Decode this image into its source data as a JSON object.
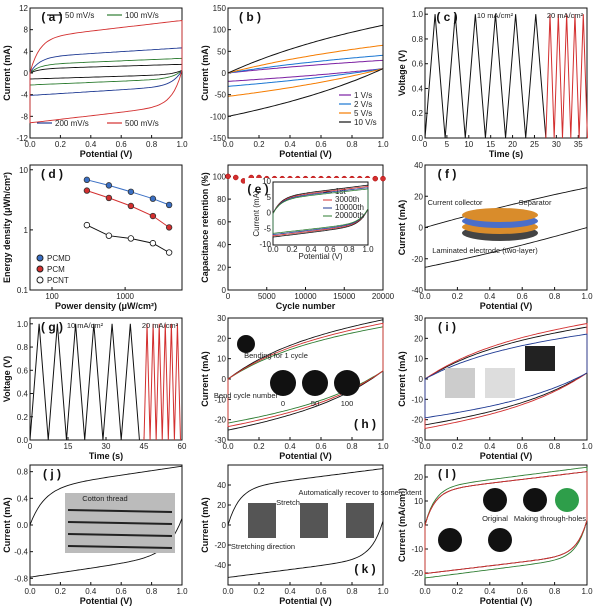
{
  "chart_data": [
    {
      "id": "a",
      "type": "line",
      "panel_label": "( a )",
      "xlabel": "Potential (V)",
      "ylabel": "Current (mA)",
      "xlim": [
        0,
        1
      ],
      "ylim": [
        -12,
        12
      ],
      "xticks": [
        0,
        0.2,
        0.4,
        0.6,
        0.8,
        1.0
      ],
      "xtick_labels": [
        "0.0",
        "0.2",
        "0.4",
        "0.6",
        "0.8",
        "1.0"
      ],
      "yticks": [
        -12,
        -8,
        -4,
        0,
        4,
        8,
        12
      ],
      "ytick_labels": [
        "-12",
        "-8",
        "-4",
        "0",
        "4",
        "8",
        "12"
      ],
      "series": [
        {
          "name": "50 mV/s",
          "color": "#111111",
          "amp": 1.2
        },
        {
          "name": "100 mV/s",
          "color": "#2e7d32",
          "amp": 2.4
        },
        {
          "name": "200 mV/s",
          "color": "#1f3a93",
          "amp": 4.5
        },
        {
          "name": "500 mV/s",
          "color": "#d32f2f",
          "amp": 10
        }
      ]
    },
    {
      "id": "b",
      "type": "line",
      "panel_label": "( b )",
      "xlabel": "Potential (V)",
      "ylabel": "Current (mA)",
      "xlim": [
        0,
        1
      ],
      "ylim": [
        -150,
        150
      ],
      "xticks": [
        0,
        0.2,
        0.4,
        0.6,
        0.8,
        1.0
      ],
      "xtick_labels": [
        "0.0",
        "0.2",
        "0.4",
        "0.6",
        "0.8",
        "1.0"
      ],
      "yticks": [
        -150,
        -100,
        -50,
        0,
        50,
        100,
        150
      ],
      "ytick_labels": [
        "-150",
        "-100",
        "-50",
        "0",
        "50",
        "100",
        "150"
      ],
      "series": [
        {
          "name": "1 V/s",
          "color": "#7b1fa2",
          "amp": 25
        },
        {
          "name": "2 V/s",
          "color": "#1976d2",
          "amp": 40
        },
        {
          "name": "5 V/s",
          "color": "#f57c00",
          "amp": 70
        },
        {
          "name": "10 V/s",
          "color": "#111111",
          "amp": 130
        }
      ]
    },
    {
      "id": "c",
      "type": "line",
      "panel_label": "( c )",
      "xlabel": "Time (s)",
      "ylabel": "Voltage (V)",
      "xlim": [
        0,
        37
      ],
      "ylim": [
        0,
        1.05
      ],
      "xticks": [
        0,
        5,
        10,
        15,
        20,
        25,
        30,
        35
      ],
      "xtick_labels": [
        "0",
        "5",
        "10",
        "15",
        "20",
        "25",
        "30",
        "35"
      ],
      "yticks": [
        0,
        0.2,
        0.4,
        0.6,
        0.8,
        1.0
      ],
      "ytick_labels": [
        "0.0",
        "0.2",
        "0.4",
        "0.6",
        "0.8",
        "1.0"
      ],
      "annotations": [
        "10 mA/cm²",
        "20 mA/cm²"
      ],
      "series": [
        {
          "name": "10 mA/cm²",
          "color": "#111111",
          "t0": 0,
          "period": 4.6,
          "cycles": 6
        },
        {
          "name": "20 mA/cm²",
          "color": "#d32f2f",
          "t0": 27.6,
          "period": 1.9,
          "cycles": 5
        }
      ]
    },
    {
      "id": "d",
      "type": "line",
      "panel_label": "( d )",
      "xlabel": "Power density (μW/cm²)",
      "ylabel": "Energy density (μWh/cm²)",
      "xscale": "log",
      "yscale": "log",
      "xlim": [
        50,
        6000
      ],
      "ylim": [
        0.1,
        12
      ],
      "xticks": [
        100,
        1000
      ],
      "xtick_labels": [
        "100",
        "1000"
      ],
      "yticks": [
        0.1,
        1,
        10
      ],
      "ytick_labels": [
        "0.1",
        "1",
        "10"
      ],
      "legend_position": "bottom-left",
      "series": [
        {
          "name": "PCMD",
          "color": "#3a6fc4",
          "marker": "filled-circle",
          "x": [
            300,
            600,
            1200,
            2400,
            4000
          ],
          "y": [
            6.8,
            5.5,
            4.3,
            3.3,
            2.6
          ]
        },
        {
          "name": "PCM",
          "color": "#d32f2f",
          "marker": "filled-circle",
          "x": [
            300,
            600,
            1200,
            2400,
            4000
          ],
          "y": [
            4.5,
            3.4,
            2.5,
            1.7,
            1.1
          ]
        },
        {
          "name": "PCNT",
          "color": "#111111",
          "marker": "open-circle",
          "x": [
            300,
            600,
            1200,
            2400,
            4000
          ],
          "y": [
            1.2,
            0.8,
            0.72,
            0.6,
            0.42
          ]
        }
      ]
    },
    {
      "id": "e",
      "type": "scatter",
      "panel_label": "( e )",
      "xlabel": "Cycle number",
      "ylabel": "Capacitance retention (%)",
      "xlim": [
        0,
        20000
      ],
      "ylim": [
        0,
        110
      ],
      "xticks": [
        0,
        5000,
        10000,
        15000,
        20000
      ],
      "xtick_labels": [
        "0",
        "5000",
        "10000",
        "15000",
        "20000"
      ],
      "yticks": [
        0,
        20,
        40,
        60,
        80,
        100
      ],
      "ytick_labels": [
        "0",
        "20",
        "40",
        "60",
        "80",
        "100"
      ],
      "series": [
        {
          "name": "retention",
          "color": "#d32f2f",
          "x": [
            0,
            1000,
            2000,
            3000,
            4000,
            5000,
            6000,
            7000,
            8000,
            9000,
            10000,
            11000,
            12000,
            13000,
            14000,
            15000,
            16000,
            17000,
            18000,
            19000,
            20000
          ],
          "y": [
            100,
            99,
            96,
            99,
            99,
            98,
            98,
            98,
            98,
            98,
            98,
            98,
            98,
            98,
            98,
            98,
            98,
            98,
            98,
            98,
            98
          ]
        }
      ],
      "inset": {
        "xlabel": "Potential (V)",
        "ylabel": "Current (mA)",
        "xlim": [
          0,
          1
        ],
        "ylim": [
          -10,
          10
        ],
        "xticks": [
          0,
          0.2,
          0.4,
          0.6,
          0.8,
          1.0
        ],
        "xtick_labels": [
          "0.0",
          "0.2",
          "0.4",
          "0.6",
          "0.8",
          "1.0"
        ],
        "yticks": [
          -10,
          -5,
          0,
          5,
          10
        ],
        "ytick_labels": [
          "-10",
          "-5",
          "0",
          "5",
          "10"
        ],
        "series": [
          {
            "name": "1st",
            "color": "#111111"
          },
          {
            "name": "3000th",
            "color": "#d32f2f"
          },
          {
            "name": "10000th",
            "color": "#1f3a93"
          },
          {
            "name": "20000th",
            "color": "#2e7d32"
          }
        ]
      }
    },
    {
      "id": "f",
      "type": "line",
      "panel_label": "( f )",
      "xlabel": "Potential (V)",
      "ylabel": "Current (mA)",
      "xlim": [
        0,
        1
      ],
      "ylim": [
        -40,
        40
      ],
      "xticks": [
        0,
        0.2,
        0.4,
        0.6,
        0.8,
        1.0
      ],
      "xtick_labels": [
        "0.0",
        "0.2",
        "0.4",
        "0.6",
        "0.8",
        "1.0"
      ],
      "yticks": [
        -40,
        -20,
        0,
        20,
        40
      ],
      "ytick_labels": [
        "-40",
        "-20",
        "0",
        "20",
        "40"
      ],
      "annotations": [
        "Current collector",
        "Separator",
        "Laminated electrode (two-layer)"
      ],
      "series": [
        {
          "name": "CV",
          "color": "#111111",
          "amp": 38
        }
      ]
    },
    {
      "id": "g",
      "type": "line",
      "panel_label": "( g )",
      "xlabel": "Time (s)",
      "ylabel": "Voltage (V)",
      "xlim": [
        0,
        60
      ],
      "ylim": [
        0,
        1.05
      ],
      "xticks": [
        0,
        15,
        30,
        45,
        60
      ],
      "xtick_labels": [
        "0",
        "15",
        "30",
        "45",
        "60"
      ],
      "yticks": [
        0,
        0.2,
        0.4,
        0.6,
        0.8,
        1.0
      ],
      "ytick_labels": [
        "0.0",
        "0.2",
        "0.4",
        "0.6",
        "0.8",
        "1.0"
      ],
      "annotations": [
        "10 mA/cm²",
        "20 mA/cm²"
      ],
      "series": [
        {
          "name": "10 mA/cm²",
          "color": "#111111",
          "t0": 0,
          "period": 7.2,
          "cycles": 6
        },
        {
          "name": "20 mA/cm²",
          "color": "#d32f2f",
          "t0": 45,
          "period": 2.4,
          "cycles": 6
        }
      ]
    },
    {
      "id": "h",
      "type": "line",
      "panel_label": "( h )",
      "xlabel": "Potential (V)",
      "ylabel": "Current (mA)",
      "xlim": [
        0,
        1
      ],
      "ylim": [
        -30,
        30
      ],
      "xticks": [
        0,
        0.2,
        0.4,
        0.6,
        0.8,
        1.0
      ],
      "xtick_labels": [
        "0.0",
        "0.2",
        "0.4",
        "0.6",
        "0.8",
        "1.0"
      ],
      "yticks": [
        -30,
        -20,
        -10,
        0,
        10,
        20,
        30
      ],
      "ytick_labels": [
        "-30",
        "-20",
        "-10",
        "0",
        "10",
        "20",
        "30"
      ],
      "annotations": [
        "Bending for 1 cycle",
        "Bend cycle number",
        "0",
        "50",
        "100"
      ],
      "series": [
        {
          "name": "0",
          "color": "#111111",
          "amp": 29
        },
        {
          "name": "50",
          "color": "#2e7d32",
          "amp": 25
        },
        {
          "name": "100",
          "color": "#d32f2f",
          "amp": 27
        }
      ]
    },
    {
      "id": "i",
      "type": "line",
      "panel_label": "( i )",
      "xlabel": "Potential (V)",
      "ylabel": "Current (mA)",
      "xlim": [
        0,
        1
      ],
      "ylim": [
        -30,
        30
      ],
      "xticks": [
        0,
        0.2,
        0.4,
        0.6,
        0.8,
        1.0
      ],
      "xtick_labels": [
        "0.0",
        "0.2",
        "0.4",
        "0.6",
        "0.8",
        "1.0"
      ],
      "yticks": [
        -30,
        -20,
        -10,
        0,
        10,
        20,
        30
      ],
      "ytick_labels": [
        "-30",
        "-20",
        "-10",
        "0",
        "10",
        "20",
        "30"
      ],
      "series": [
        {
          "name": "black",
          "color": "#111111",
          "amp": 26
        },
        {
          "name": "red",
          "color": "#d32f2f",
          "amp": 28
        },
        {
          "name": "blue",
          "color": "#1f3a93",
          "amp": 22
        }
      ]
    },
    {
      "id": "j",
      "type": "line",
      "panel_label": "( j )",
      "xlabel": "Potential (V)",
      "ylabel": "Current (mA)",
      "xlim": [
        0,
        1
      ],
      "ylim": [
        -0.9,
        0.9
      ],
      "xticks": [
        0,
        0.2,
        0.4,
        0.6,
        0.8,
        1.0
      ],
      "xtick_labels": [
        "0.0",
        "0.2",
        "0.4",
        "0.6",
        "0.8",
        "1.0"
      ],
      "yticks": [
        -0.8,
        -0.4,
        0,
        0.4,
        0.8
      ],
      "ytick_labels": [
        "-0.8",
        "-0.4",
        "0.0",
        "0.4",
        "0.8"
      ],
      "annotations": [
        "Cotton thread"
      ],
      "series": [
        {
          "name": "CV",
          "color": "#111111",
          "amp": 0.85
        }
      ]
    },
    {
      "id": "k",
      "type": "line",
      "panel_label": "( k )",
      "xlabel": "Potential (V)",
      "ylabel": "Current (mA)",
      "xlim": [
        0,
        1
      ],
      "ylim": [
        -60,
        60
      ],
      "xticks": [
        0,
        0.2,
        0.4,
        0.6,
        0.8,
        1.0
      ],
      "xtick_labels": [
        "0.0",
        "0.2",
        "0.4",
        "0.6",
        "0.8",
        "1.0"
      ],
      "yticks": [
        -40,
        -20,
        0,
        20,
        40
      ],
      "ytick_labels": [
        "-40",
        "-20",
        "0",
        "20",
        "40"
      ],
      "annotations": [
        "Stretch",
        "Automatically recover to some extent",
        "Stretching direction"
      ],
      "series": [
        {
          "name": "CV",
          "color": "#111111",
          "amp": 57
        }
      ]
    },
    {
      "id": "l",
      "type": "line",
      "panel_label": "( l )",
      "xlabel": "Potential (V)",
      "ylabel": "Current (mA/cm²)",
      "xlim": [
        0,
        1
      ],
      "ylim": [
        -25,
        25
      ],
      "xticks": [
        0,
        0.2,
        0.4,
        0.6,
        0.8,
        1.0
      ],
      "xtick_labels": [
        "0.0",
        "0.2",
        "0.4",
        "0.6",
        "0.8",
        "1.0"
      ],
      "yticks": [
        -20,
        -10,
        0,
        10,
        20
      ],
      "ytick_labels": [
        "-20",
        "-10",
        "0",
        "10",
        "20"
      ],
      "annotations": [
        "Original",
        "Making through-holes"
      ],
      "series": [
        {
          "name": "original",
          "color": "#111111",
          "amp": 22
        },
        {
          "name": "holes",
          "color": "#2e7d32",
          "amp": 24
        },
        {
          "name": "holes2",
          "color": "#d32f2f",
          "amp": 22
        }
      ]
    }
  ]
}
